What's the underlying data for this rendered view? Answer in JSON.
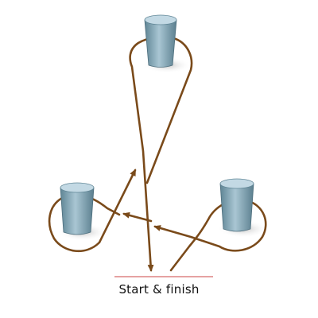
{
  "diagram": {
    "label": "Start & finish",
    "colors": {
      "path": "#7a4a1a",
      "line": "#d86a6a",
      "barrel_body": "#7fa3b3",
      "barrel_top": "#bfd6e2",
      "shadow": "#d9d9d9"
    },
    "barrels": [
      {
        "name": "top-barrel"
      },
      {
        "name": "left-barrel"
      },
      {
        "name": "right-barrel"
      }
    ]
  }
}
